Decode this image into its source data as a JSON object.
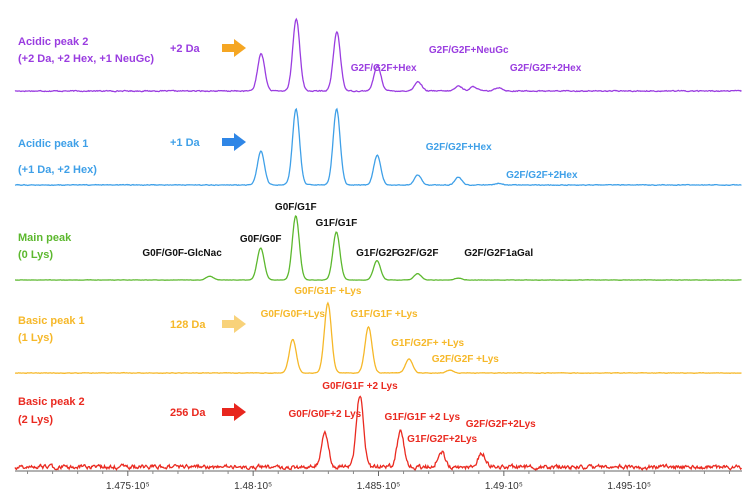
{
  "chart_data": {
    "type": "line",
    "title": "",
    "xlabel": "",
    "ylabel": "",
    "xlim": [
      147050,
      149950
    ],
    "x_ticks": [
      {
        "value": 147500,
        "label": "1.475·10⁵"
      },
      {
        "value": 148000,
        "label": "1.48·10⁵"
      },
      {
        "value": 148500,
        "label": "1.485·10⁵"
      },
      {
        "value": 149000,
        "label": "1.49·10⁵"
      },
      {
        "value": 149500,
        "label": "1.495·10⁵"
      }
    ],
    "grid": false,
    "legend": "none",
    "series": [
      {
        "name": "Acidic peak 2",
        "sub": "(+2 Da, +2 Hex, +1 NeuGc)",
        "color": "#9a3de0",
        "shift_label": "+2 Da",
        "arrow_color": "#f5a623",
        "noise": 0.012,
        "peaks": [
          {
            "x": 148032,
            "h": 0.52
          },
          {
            "x": 148172,
            "h": 1.0
          },
          {
            "x": 148334,
            "h": 0.82
          },
          {
            "x": 148496,
            "h": 0.35
          },
          {
            "x": 148658,
            "h": 0.13
          },
          {
            "x": 148820,
            "h": 0.07
          },
          {
            "x": 148880,
            "h": 0.06
          },
          {
            "x": 148980,
            "h": 0.05
          }
        ],
        "annotations": [
          {
            "text": "G2F/G2F+Hex",
            "x": 148660,
            "h": 0.13,
            "pos": "left"
          },
          {
            "text": "G2F/G2F+NeuGc",
            "x": 148860,
            "h": 0.07,
            "pos": "up"
          },
          {
            "text": "G2F/G2F+2Hex",
            "x": 149000,
            "h": 0.05,
            "pos": "right"
          }
        ]
      },
      {
        "name": "Acidic peak 1",
        "sub": "(+1 Da, +2 Hex)",
        "color": "#3fa0e8",
        "shift_label": "+1 Da",
        "arrow_color": "#2f86e6",
        "noise": 0.008,
        "peaks": [
          {
            "x": 148031,
            "h": 0.44
          },
          {
            "x": 148171,
            "h": 1.0
          },
          {
            "x": 148333,
            "h": 1.0
          },
          {
            "x": 148495,
            "h": 0.39
          },
          {
            "x": 148657,
            "h": 0.13
          },
          {
            "x": 148819,
            "h": 0.1
          },
          {
            "x": 148981,
            "h": 0.02
          }
        ],
        "annotations": [
          {
            "text": "G2F/G2F+Hex",
            "x": 148820,
            "h": 0.1,
            "pos": "up"
          },
          {
            "text": "G2F/G2F+2Hex",
            "x": 148985,
            "h": 0.02,
            "pos": "right"
          }
        ]
      },
      {
        "name": "Main peak",
        "sub": "(0 Lys)",
        "color": "#5cb82e",
        "shift_label": "",
        "arrow_color": "",
        "noise": 0.004,
        "peaks": [
          {
            "x": 147827,
            "h": 0.06
          },
          {
            "x": 148030,
            "h": 0.5
          },
          {
            "x": 148170,
            "h": 1.0
          },
          {
            "x": 148332,
            "h": 0.75
          },
          {
            "x": 148494,
            "h": 0.3
          },
          {
            "x": 148656,
            "h": 0.1
          },
          {
            "x": 148818,
            "h": 0.03
          }
        ],
        "annotations": [
          {
            "text": "G0F/G0F-GlcNac",
            "x": 147827,
            "h": 0.06,
            "pos": "left"
          },
          {
            "text": "G0F/G0F",
            "x": 148030,
            "h": 0.5,
            "pos": "up"
          },
          {
            "text": "G0F/G1F",
            "x": 148170,
            "h": 1.0,
            "pos": "up"
          },
          {
            "text": "G1F/G1F",
            "x": 148332,
            "h": 0.75,
            "pos": "up"
          },
          {
            "text": "G1F/G2F",
            "x": 148494,
            "h": 0.3,
            "pos": "up"
          },
          {
            "text": "G2F/G2F",
            "x": 148656,
            "h": 0.1,
            "pos": "up"
          },
          {
            "text": "G2F/G2F1aGal",
            "x": 148818,
            "h": 0.03,
            "pos": "right"
          }
        ]
      },
      {
        "name": "Basic peak 1",
        "sub": "(1 Lys)",
        "color": "#f6b829",
        "shift_label": "128 Da",
        "arrow_color": "#f8d27a",
        "noise": 0.006,
        "peaks": [
          {
            "x": 148158,
            "h": 0.48
          },
          {
            "x": 148298,
            "h": 1.0
          },
          {
            "x": 148460,
            "h": 0.66
          },
          {
            "x": 148622,
            "h": 0.2
          },
          {
            "x": 148784,
            "h": 0.04
          }
        ],
        "annotations": [
          {
            "text": "G0F/G0F+Lys",
            "x": 148158,
            "h": 0.48,
            "pos": "up"
          },
          {
            "text": "G0F/G1F +Lys",
            "x": 148298,
            "h": 1.0,
            "pos": "up"
          },
          {
            "text": "G1F/G1F +Lys",
            "x": 148460,
            "h": 0.66,
            "pos": "up"
          },
          {
            "text": "G1F/G2F+ +Lys",
            "x": 148622,
            "h": 0.2,
            "pos": "up"
          },
          {
            "text": "G2F/G2F +Lys",
            "x": 148784,
            "h": 0.04,
            "pos": "up"
          }
        ]
      },
      {
        "name": "Basic peak 2",
        "sub": "(2 Lys)",
        "color": "#ea2a20",
        "shift_label": "256 Da",
        "arrow_color": "#e8261e",
        "noise": 0.05,
        "peaks": [
          {
            "x": 148286,
            "h": 0.47
          },
          {
            "x": 148426,
            "h": 1.0
          },
          {
            "x": 148588,
            "h": 0.5
          },
          {
            "x": 148750,
            "h": 0.22
          },
          {
            "x": 148912,
            "h": 0.2
          }
        ],
        "annotations": [
          {
            "text": "G0F/G0F+2 Lys",
            "x": 148286,
            "h": 0.47,
            "pos": "up"
          },
          {
            "text": "G0F/G1F +2 Lys",
            "x": 148426,
            "h": 1.0,
            "pos": "up"
          },
          {
            "text": "G1F/G1F +2 Lys",
            "x": 148588,
            "h": 0.5,
            "pos": "up"
          },
          {
            "text": "G1F/G2F+2Lys",
            "x": 148750,
            "h": 0.22,
            "pos": "up"
          },
          {
            "text": "G2F/G2F+2Lys",
            "x": 148912,
            "h": 0.2,
            "pos": "up"
          }
        ]
      }
    ]
  }
}
